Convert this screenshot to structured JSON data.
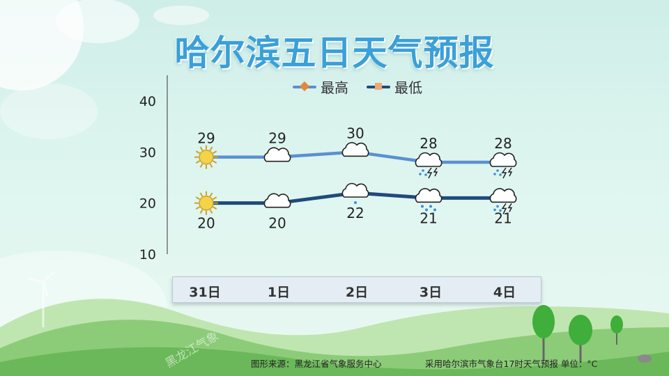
{
  "title": "哈尔滨五日天气预报",
  "source": "图形来源：黑龙江省气象服务中心",
  "note": "采用哈尔滨市气象台17时天气预报 单位：°C",
  "watermark": "黑龙江气象",
  "colors": {
    "high": "#5b8fd1",
    "low": "#1f4a7c",
    "high_marker": "#e08a3a",
    "low_marker": "#f0a878",
    "title": "#3aa0d8"
  },
  "chart_data": {
    "type": "line",
    "categories": [
      "31日",
      "1日",
      "2日",
      "3日",
      "4日"
    ],
    "series": [
      {
        "name": "最高",
        "values": [
          29,
          29,
          30,
          28,
          28
        ]
      },
      {
        "name": "最低",
        "values": [
          20,
          20,
          22,
          21,
          21
        ]
      }
    ],
    "icons": {
      "最高": [
        "sunny-icon",
        "cloudy-icon",
        "cloudy-icon",
        "thunderstorm-icon",
        "thunderstorm-icon"
      ],
      "最低": [
        "sunny-icon",
        "cloudy-icon",
        "light-rain-icon",
        "rain-icon",
        "thunderstorm-icon"
      ]
    },
    "yticks": [
      10,
      20,
      30,
      40
    ],
    "ylim": [
      10,
      40
    ],
    "legend": "top",
    "grid": false
  }
}
